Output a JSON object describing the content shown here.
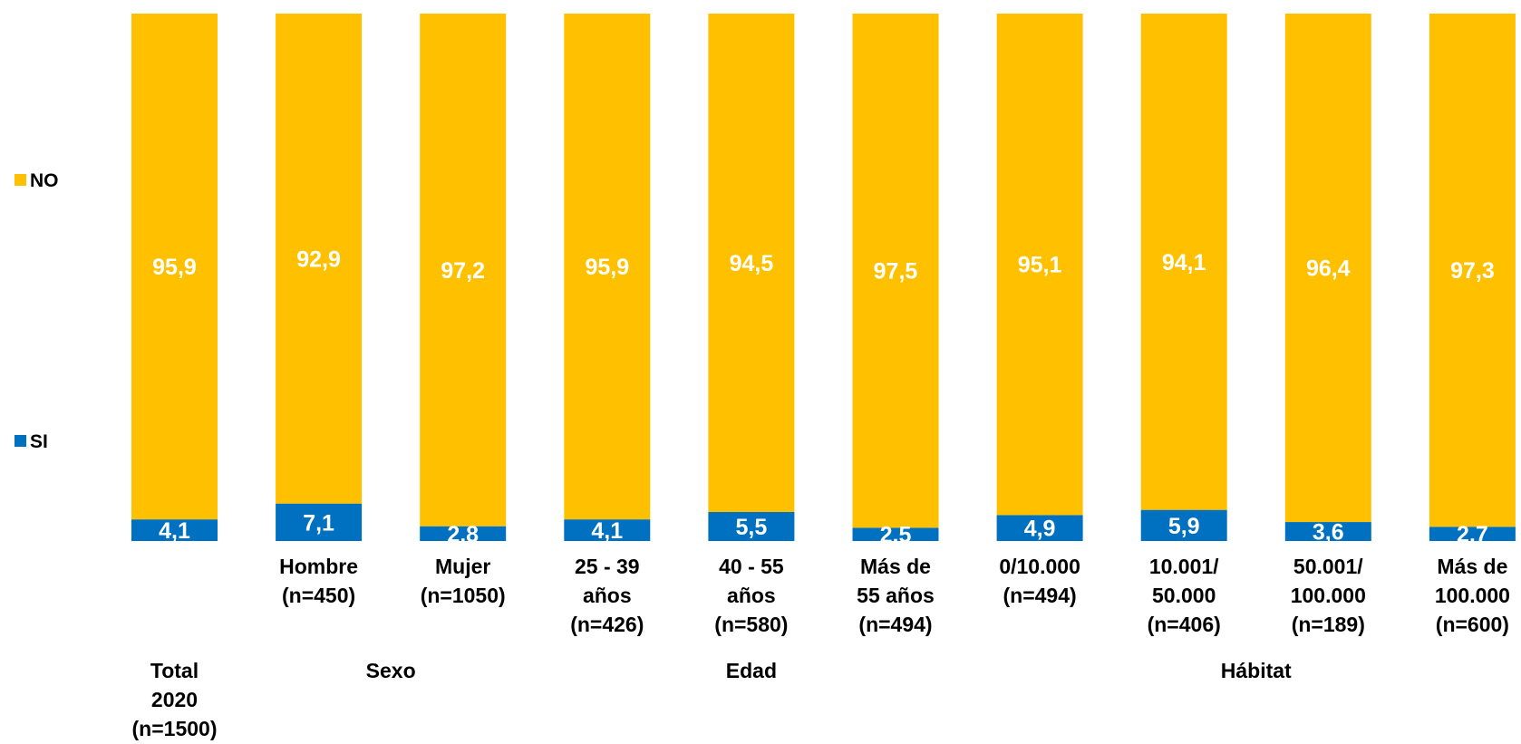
{
  "chart_data": {
    "type": "bar",
    "stacked": true,
    "ylim": [
      0,
      100
    ],
    "categories": [
      [
        "Total",
        "2020",
        "(n=1500)"
      ],
      [
        "Hombre",
        "(n=450)"
      ],
      [
        "Mujer",
        "(n=1050)"
      ],
      [
        "25 - 39",
        "años",
        "(n=426)"
      ],
      [
        "40 - 55",
        "años",
        "(n=580)"
      ],
      [
        "Más de",
        "55 años",
        "(n=494)"
      ],
      [
        "0/10.000",
        "(n=494)"
      ],
      [
        "10.001/",
        "50.000",
        "(n=406)"
      ],
      [
        "50.001/",
        "100.000",
        "(n=189)"
      ],
      [
        "Más de",
        "100.000",
        "(n=600)"
      ]
    ],
    "series": [
      {
        "name": "SI",
        "color": "#0070C0",
        "values": [
          4.1,
          7.1,
          2.8,
          4.1,
          5.5,
          2.5,
          4.9,
          5.9,
          3.6,
          2.7
        ],
        "labels": [
          "4,1",
          "7,1",
          "2,8",
          "4,1",
          "5,5",
          "2,5",
          "4,9",
          "5,9",
          "3,6",
          "2,7"
        ]
      },
      {
        "name": "NO",
        "color": "#FFC000",
        "values": [
          95.9,
          92.9,
          97.2,
          95.9,
          94.5,
          97.5,
          95.1,
          94.1,
          96.4,
          97.3
        ],
        "labels": [
          "95,9",
          "92,9",
          "97,2",
          "95,9",
          "94,5",
          "97,5",
          "95,1",
          "94,1",
          "96,4",
          "97,3"
        ]
      }
    ],
    "groups": [
      {
        "label": "Sexo"
      },
      {
        "label": "Edad"
      },
      {
        "label": "Hábitat"
      }
    ],
    "legend": {
      "position": "left",
      "order": [
        "NO",
        "SI"
      ]
    }
  }
}
